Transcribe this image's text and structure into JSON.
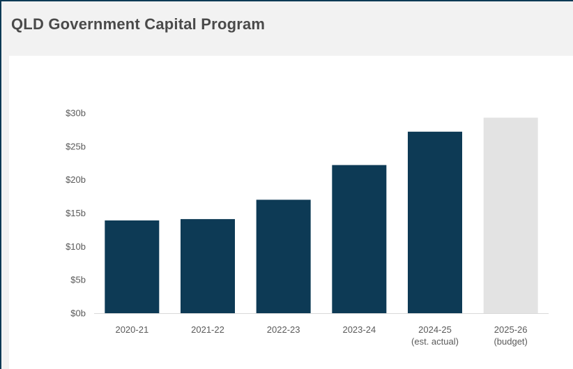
{
  "header": {
    "title": "QLD Government Capital Program"
  },
  "chart_data": {
    "type": "bar",
    "title": "",
    "xlabel": "",
    "ylabel": "",
    "categories": [
      [
        "2020-21"
      ],
      [
        "2021-22"
      ],
      [
        "2022-23"
      ],
      [
        "2023-24"
      ],
      [
        "2024-25",
        "(est. actual)"
      ],
      [
        "2025-26",
        "(budget)"
      ]
    ],
    "values": [
      13.9,
      14.1,
      17.0,
      22.2,
      27.2,
      29.3
    ],
    "ylim": [
      0,
      30
    ],
    "yticks": [
      0,
      5,
      10,
      15,
      20,
      25,
      30
    ],
    "y_tick_format": "$%sb",
    "grid": false,
    "legend": "none",
    "colors": {
      "bar": "#0d3a55",
      "budget_bar": "#e3e3e3",
      "axis": "#d9d9d9"
    }
  }
}
